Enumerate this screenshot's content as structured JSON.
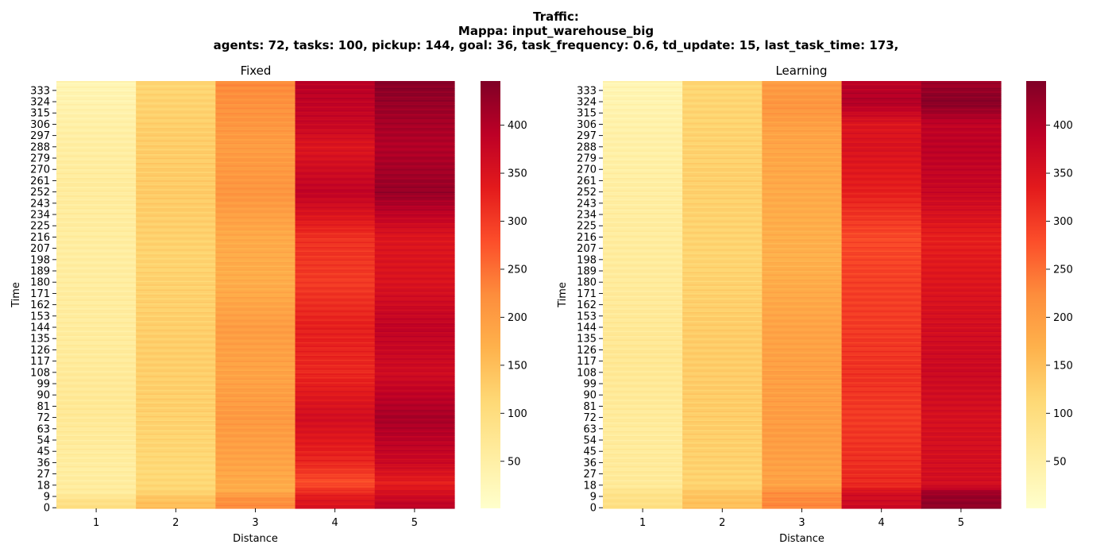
{
  "figure": {
    "suptitle": [
      "Traffic:",
      "Mappa: input_warehouse_big",
      "agents: 72, tasks: 100, pickup: 144, goal: 36, task_frequency: 0.6, td_update: 15, last_task_time: 173,"
    ]
  },
  "chart_data": [
    {
      "type": "heatmap",
      "title": "Fixed",
      "xlabel": "Distance",
      "ylabel": "Time",
      "x_categories": [
        "1",
        "2",
        "3",
        "4",
        "5"
      ],
      "y_ticks": [
        0,
        9,
        18,
        27,
        36,
        45,
        54,
        63,
        72,
        81,
        90,
        99,
        108,
        117,
        126,
        135,
        144,
        153,
        162,
        171,
        180,
        189,
        198,
        207,
        216,
        225,
        234,
        243,
        252,
        261,
        270,
        279,
        288,
        297,
        306,
        315,
        324,
        333
      ],
      "y_range": [
        0,
        341
      ],
      "colorbar": {
        "min": 1,
        "max": 446,
        "ticks": [
          50,
          100,
          150,
          200,
          250,
          300,
          350,
          400
        ],
        "colormap": "YlOrRd"
      },
      "columns": [
        {
          "distance": 1,
          "profile": [
            [
              0,
              95
            ],
            [
              6,
              88
            ],
            [
              12,
              60
            ],
            [
              30,
              55
            ],
            [
              80,
              70
            ],
            [
              130,
              60
            ],
            [
              200,
              55
            ],
            [
              260,
              60
            ],
            [
              300,
              50
            ],
            [
              341,
              30
            ]
          ]
        },
        {
          "distance": 2,
          "profile": [
            [
              0,
              155
            ],
            [
              8,
              140
            ],
            [
              14,
              115
            ],
            [
              30,
              110
            ],
            [
              80,
              125
            ],
            [
              130,
              128
            ],
            [
              200,
              120
            ],
            [
              252,
              132
            ],
            [
              300,
              128
            ],
            [
              341,
              115
            ]
          ]
        },
        {
          "distance": 3,
          "profile": [
            [
              0,
              225
            ],
            [
              8,
              215
            ],
            [
              14,
              175
            ],
            [
              36,
              190
            ],
            [
              72,
              205
            ],
            [
              108,
              190
            ],
            [
              144,
              200
            ],
            [
              180,
              175
            ],
            [
              216,
              180
            ],
            [
              252,
              210
            ],
            [
              288,
              200
            ],
            [
              320,
              215
            ],
            [
              341,
              225
            ]
          ]
        },
        {
          "distance": 4,
          "profile": [
            [
              0,
              350
            ],
            [
              8,
              340
            ],
            [
              20,
              280
            ],
            [
              36,
              320
            ],
            [
              72,
              360
            ],
            [
              108,
              320
            ],
            [
              144,
              330
            ],
            [
              180,
              300
            ],
            [
              216,
              310
            ],
            [
              252,
              385
            ],
            [
              288,
              345
            ],
            [
              306,
              375
            ],
            [
              341,
              395
            ]
          ]
        },
        {
          "distance": 5,
          "profile": [
            [
              0,
              395
            ],
            [
              8,
              370
            ],
            [
              20,
              330
            ],
            [
              36,
              370
            ],
            [
              72,
              410
            ],
            [
              108,
              365
            ],
            [
              144,
              385
            ],
            [
              180,
              350
            ],
            [
              216,
              345
            ],
            [
              252,
              425
            ],
            [
              288,
              400
            ],
            [
              306,
              410
            ],
            [
              341,
              440
            ]
          ]
        }
      ]
    },
    {
      "type": "heatmap",
      "title": "Learning",
      "xlabel": "Distance",
      "ylabel": "Time",
      "x_categories": [
        "1",
        "2",
        "3",
        "4",
        "5"
      ],
      "y_ticks": [
        0,
        9,
        18,
        27,
        36,
        45,
        54,
        63,
        72,
        81,
        90,
        99,
        108,
        117,
        126,
        135,
        144,
        153,
        162,
        171,
        180,
        189,
        198,
        207,
        216,
        225,
        234,
        243,
        252,
        261,
        270,
        279,
        288,
        297,
        306,
        315,
        324,
        333
      ],
      "y_range": [
        0,
        341
      ],
      "colorbar": {
        "min": 1,
        "max": 446,
        "ticks": [
          50,
          100,
          150,
          200,
          250,
          300,
          350,
          400
        ],
        "colormap": "YlOrRd"
      },
      "columns": [
        {
          "distance": 1,
          "profile": [
            [
              0,
              95
            ],
            [
              12,
              85
            ],
            [
              18,
              65
            ],
            [
              60,
              60
            ],
            [
              120,
              72
            ],
            [
              180,
              62
            ],
            [
              240,
              55
            ],
            [
              300,
              45
            ],
            [
              341,
              30
            ]
          ]
        },
        {
          "distance": 2,
          "profile": [
            [
              0,
              150
            ],
            [
              12,
              140
            ],
            [
              18,
              120
            ],
            [
              80,
              130
            ],
            [
              140,
              130
            ],
            [
              200,
              118
            ],
            [
              260,
              125
            ],
            [
              300,
              120
            ],
            [
              341,
              115
            ]
          ]
        },
        {
          "distance": 3,
          "profile": [
            [
              0,
              230
            ],
            [
              12,
              220
            ],
            [
              18,
              190
            ],
            [
              60,
              200
            ],
            [
              108,
              195
            ],
            [
              144,
              190
            ],
            [
              200,
              170
            ],
            [
              252,
              180
            ],
            [
              300,
              190
            ],
            [
              320,
              210
            ],
            [
              341,
              200
            ]
          ]
        },
        {
          "distance": 4,
          "profile": [
            [
              0,
              370
            ],
            [
              12,
              360
            ],
            [
              18,
              320
            ],
            [
              72,
              300
            ],
            [
              108,
              310
            ],
            [
              144,
              300
            ],
            [
              180,
              295
            ],
            [
              216,
              285
            ],
            [
              252,
              330
            ],
            [
              288,
              350
            ],
            [
              306,
              345
            ],
            [
              324,
              400
            ],
            [
              341,
              390
            ]
          ]
        },
        {
          "distance": 5,
          "profile": [
            [
              0,
              435
            ],
            [
              12,
              420
            ],
            [
              18,
              360
            ],
            [
              72,
              355
            ],
            [
              108,
              370
            ],
            [
              144,
              360
            ],
            [
              180,
              345
            ],
            [
              216,
              330
            ],
            [
              252,
              375
            ],
            [
              288,
              390
            ],
            [
              306,
              385
            ],
            [
              324,
              440
            ],
            [
              341,
              415
            ]
          ]
        }
      ]
    }
  ]
}
